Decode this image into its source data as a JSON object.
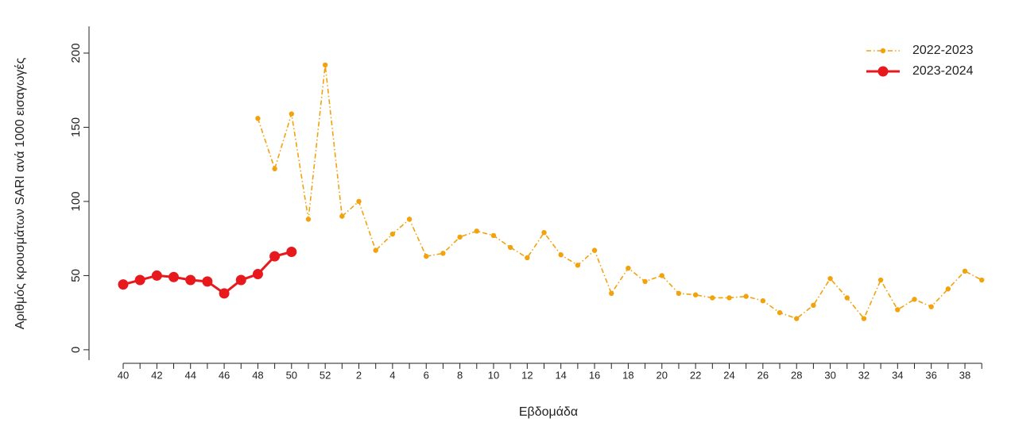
{
  "chart_data": {
    "type": "line",
    "y_label": "Αριθμός κρουσμάτων SARI ανά 1000 εισαγωγές",
    "x_label": "Εβδομάδα",
    "categories": [
      "40",
      null,
      "42",
      null,
      "44",
      null,
      "46",
      null,
      "48",
      null,
      "50",
      null,
      "52",
      null,
      "2",
      null,
      "4",
      null,
      "6",
      null,
      "8",
      null,
      "10",
      null,
      "12",
      null,
      "14",
      null,
      "16",
      null,
      "18",
      null,
      "20",
      null,
      "22",
      null,
      "24",
      null,
      "26",
      null,
      "28",
      null,
      "30",
      null,
      "32",
      null,
      "34",
      null,
      "36",
      null,
      "38",
      null
    ],
    "series": [
      {
        "name": "2022-2023",
        "color": "#f2a20c",
        "values": [
          null,
          null,
          null,
          null,
          null,
          null,
          null,
          null,
          156,
          122,
          159,
          88,
          192,
          90,
          100,
          67,
          78,
          88,
          63,
          65,
          76,
          80,
          77,
          69,
          62,
          79,
          64,
          57,
          67,
          38,
          55,
          46,
          50,
          38,
          37,
          35,
          35,
          36,
          33,
          25,
          21,
          30,
          48,
          35,
          21,
          47,
          27,
          34,
          29,
          41,
          53,
          47
        ]
      },
      {
        "name": "2023-2024",
        "color": "#e8191c",
        "values": [
          44,
          47,
          50,
          49,
          47,
          46,
          38,
          47,
          51,
          63,
          66,
          null,
          null,
          null,
          null,
          null,
          null,
          null,
          null,
          null,
          null,
          null,
          null,
          null,
          null,
          null,
          null,
          null,
          null,
          null,
          null,
          null,
          null,
          null,
          null,
          null,
          null,
          null,
          null,
          null,
          null,
          null,
          null,
          null,
          null,
          null,
          null,
          null,
          null,
          null,
          null,
          null
        ]
      }
    ],
    "ylim": [
      -7,
      218
    ],
    "yticks": [
      0,
      50,
      100,
      150,
      200
    ],
    "grid": false,
    "legend": "top-right"
  }
}
